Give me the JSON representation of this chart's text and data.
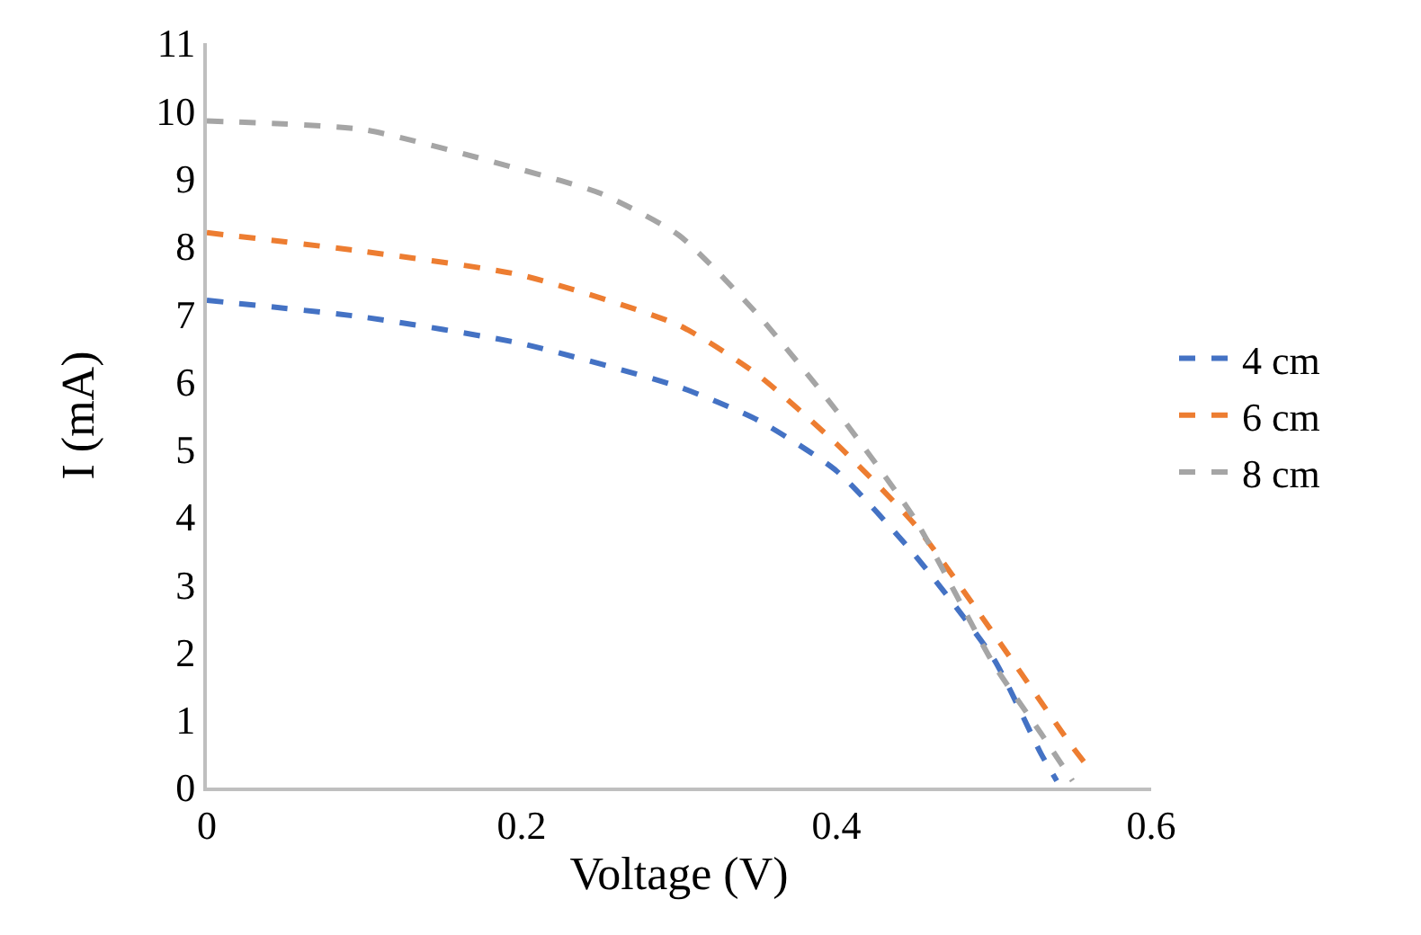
{
  "chart_data": {
    "type": "line",
    "xlabel": "Voltage (V)",
    "ylabel": "I (mA)",
    "xlim": [
      0,
      0.6
    ],
    "xticks": [
      0,
      0.2,
      0.4,
      0.6
    ],
    "ylim": [
      0,
      11
    ],
    "yticks": [
      0,
      1,
      2,
      3,
      4,
      5,
      6,
      7,
      8,
      9,
      10,
      11
    ],
    "grid": false,
    "legend": "right",
    "line_style": "dashed",
    "marker": "none",
    "x": [
      0,
      0.1,
      0.2,
      0.3,
      0.35,
      0.4,
      0.45,
      0.5,
      0.53,
      0.54
    ],
    "series": [
      {
        "name": "4 cm",
        "color": "#4472c4",
        "values": [
          7.2,
          6.95,
          6.56,
          5.92,
          5.43,
          4.68,
          3.43,
          1.9,
          0.5,
          0.1
        ]
      },
      {
        "name": "6 cm",
        "color": "#ed7d31",
        "x": [
          0,
          0.1,
          0.2,
          0.3,
          0.35,
          0.4,
          0.45,
          0.5,
          0.55,
          0.56
        ],
        "values": [
          8.2,
          7.92,
          7.57,
          6.83,
          6.1,
          5.08,
          3.88,
          2.27,
          0.6,
          0.3
        ]
      },
      {
        "name": "8 cm",
        "color": "#a5a5a5",
        "x": [
          0,
          0.1,
          0.2,
          0.25,
          0.3,
          0.35,
          0.4,
          0.45,
          0.5,
          0.53,
          0.55
        ],
        "values": [
          9.85,
          9.72,
          9.13,
          8.78,
          8.16,
          6.99,
          5.57,
          3.96,
          1.82,
          0.8,
          0.1
        ]
      }
    ]
  }
}
